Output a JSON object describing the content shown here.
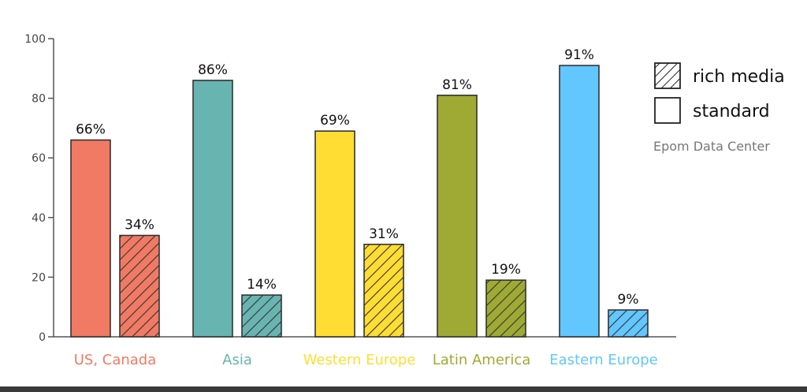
{
  "chart_data": {
    "type": "bar",
    "categories": [
      "US, Canada",
      "Asia",
      "Western Europe",
      "Latin America",
      "Eastern Europe"
    ],
    "category_colors": [
      "#f07a63",
      "#68b4b0",
      "#ffdd33",
      "#9eaa34",
      "#62c7ff"
    ],
    "series": [
      {
        "name": "standard",
        "values": [
          66,
          86,
          69,
          81,
          91
        ],
        "labels": [
          "66%",
          "86%",
          "69%",
          "81%",
          "91%"
        ],
        "pattern": "solid"
      },
      {
        "name": "rich media",
        "values": [
          34,
          14,
          31,
          19,
          9
        ],
        "labels": [
          "34%",
          "14%",
          "31%",
          "19%",
          "9%"
        ],
        "pattern": "hatched"
      }
    ],
    "yticks": [
      "0",
      "20",
      "40",
      "60",
      "80",
      "100"
    ],
    "ylim": [
      0,
      100
    ],
    "legend_position": "top-right",
    "source": "Epom Data Center",
    "grid": false
  }
}
